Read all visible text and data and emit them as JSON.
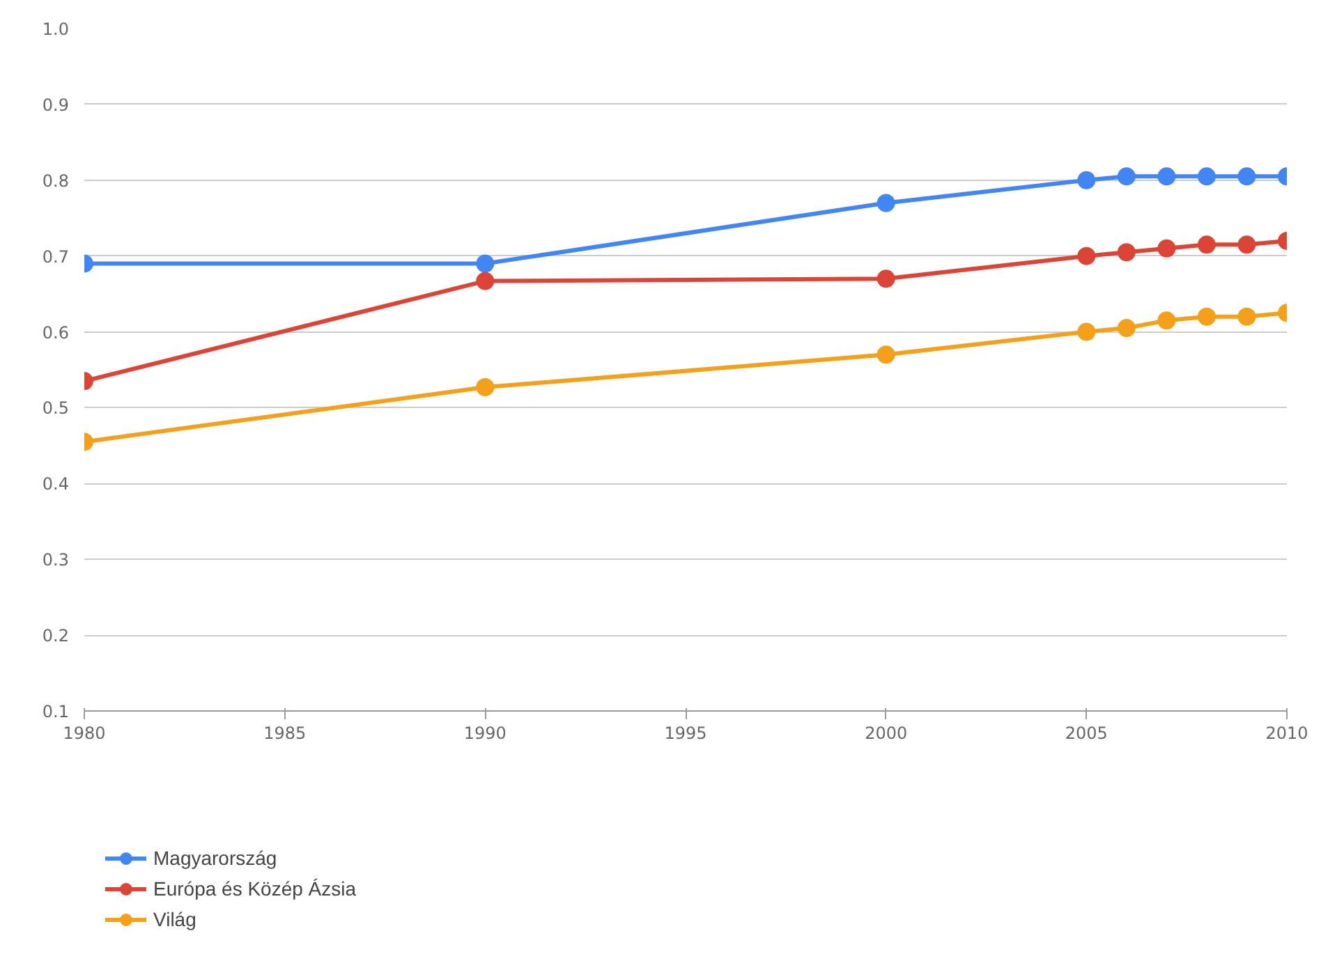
{
  "chart_data": {
    "type": "line",
    "x": [
      1980,
      1990,
      2000,
      2005,
      2006,
      2007,
      2008,
      2009,
      2010
    ],
    "series": [
      {
        "name": "Magyarország",
        "color": "#4285f4",
        "values": [
          0.69,
          0.69,
          0.77,
          0.8,
          0.805,
          0.805,
          0.805,
          0.805,
          0.805
        ]
      },
      {
        "name": "Európa és Közép Ázsia",
        "color": "#db4437",
        "values": [
          0.535,
          0.667,
          0.67,
          0.7,
          0.705,
          0.71,
          0.715,
          0.715,
          0.72
        ]
      },
      {
        "name": "Világ",
        "color": "#f4a01a",
        "values": [
          0.455,
          0.527,
          0.57,
          0.6,
          0.605,
          0.615,
          0.62,
          0.62,
          0.625
        ]
      }
    ],
    "xlim": [
      1980,
      2010
    ],
    "xticks": [
      1980,
      1985,
      1990,
      1995,
      2000,
      2005,
      2010
    ],
    "ylim": [
      0.1,
      1.0
    ],
    "yticks": [
      {
        "value": 0.1,
        "label": "0.1"
      },
      {
        "value": 0.2,
        "label": "0.2"
      },
      {
        "value": 0.3,
        "label": "0.3"
      },
      {
        "value": 0.4,
        "label": "0.4"
      },
      {
        "value": 0.5,
        "label": "0.5"
      },
      {
        "value": 0.6,
        "label": "0.6"
      },
      {
        "value": 0.7,
        "label": "0.7"
      },
      {
        "value": 0.8,
        "label": "0.8"
      },
      {
        "value": 0.9,
        "label": "0.9"
      },
      {
        "value": 1.0,
        "label": "1.0"
      }
    ],
    "grid": "y",
    "legend": "bottom",
    "marker": "circle",
    "line_style": "solid"
  }
}
